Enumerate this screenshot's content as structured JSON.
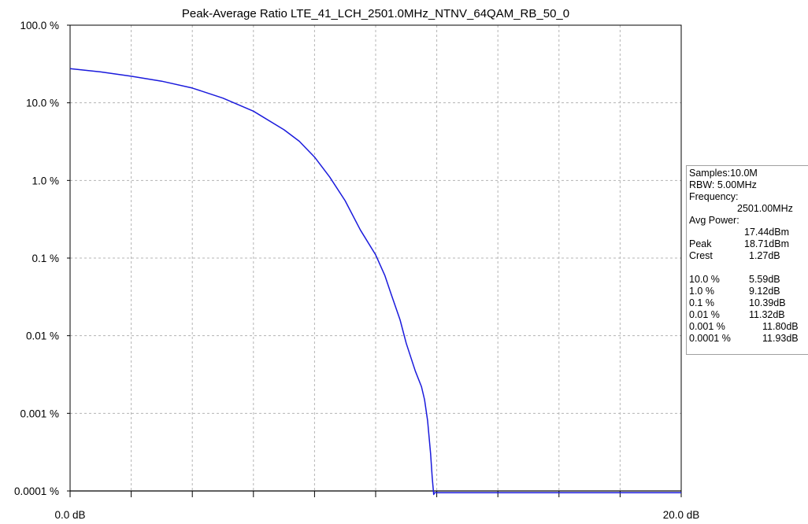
{
  "chart_data": {
    "type": "line",
    "title": "Peak-Average Ratio LTE_41_LCH_2501.0MHz_NTNV_64QAM_RB_50_0",
    "x_scale": "linear",
    "y_scale": "log",
    "xlim": [
      0,
      20
    ],
    "ylim_percent": [
      0.0001,
      100
    ],
    "x_tick_labels": [
      "0.0 dB",
      "20.0 dB"
    ],
    "y_ticks": [
      {
        "value": 100,
        "label": "100.0 %"
      },
      {
        "value": 10,
        "label": "10.0 %"
      },
      {
        "value": 1,
        "label": "1.0 %"
      },
      {
        "value": 0.1,
        "label": "0.1 %"
      },
      {
        "value": 0.01,
        "label": "0.01 %"
      },
      {
        "value": 0.001,
        "label": "0.001 %"
      },
      {
        "value": 0.0001,
        "label": "0.0001 %"
      }
    ],
    "grid": true,
    "reference_line_percent": 0.0001,
    "series": [
      {
        "color": "#1a1adc",
        "x_db": [
          0,
          1,
          2,
          3,
          4,
          5,
          6,
          7,
          7.5,
          8,
          8.5,
          9,
          9.5,
          10,
          10.3,
          10.5,
          10.8,
          11,
          11.3,
          11.5,
          11.6,
          11.7,
          11.8,
          11.85,
          11.9,
          11.93,
          11.93,
          20
        ],
        "y_percent": [
          27.5,
          25,
          22,
          19,
          15.5,
          11.5,
          7.8,
          4.5,
          3.2,
          2.0,
          1.1,
          0.55,
          0.23,
          0.11,
          0.06,
          0.035,
          0.016,
          0.008,
          0.0035,
          0.0022,
          0.0015,
          0.0008,
          0.0003,
          0.00015,
          9e-05,
          9.5e-05,
          9.5e-05,
          9.5e-05
        ]
      }
    ]
  },
  "info_panel": {
    "samples": "Samples:10.0M",
    "rbw": "RBW: 5.00MHz",
    "frequency_label": "Frequency:",
    "frequency_value": "2501.00MHz",
    "avg_power_label": "Avg Power:",
    "avg_power_value": "17.44dBm",
    "peak_label": "Peak",
    "peak_value": "18.71dBm",
    "crest_label": "Crest",
    "crest_value": "1.27dB",
    "rows": [
      {
        "pct": "10.0 %",
        "db": "5.59dB"
      },
      {
        "pct": "1.0 %",
        "db": "9.12dB"
      },
      {
        "pct": "0.1 %",
        "db": "10.39dB"
      },
      {
        "pct": "0.01 %",
        "db": "11.32dB"
      },
      {
        "pct": "0.001 %",
        "db": "11.80dB"
      },
      {
        "pct": "0.0001 %",
        "db": "11.93dB"
      }
    ]
  }
}
